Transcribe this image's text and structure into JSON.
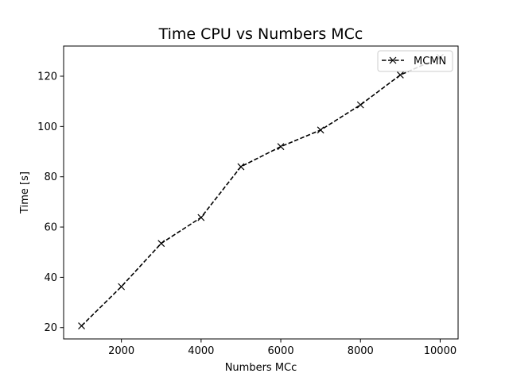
{
  "chart_data": {
    "type": "line",
    "title": "Time CPU vs Numbers MCc",
    "xlabel": "Numbers MCc",
    "ylabel": "Time [s]",
    "xlim": [
      550,
      10450
    ],
    "ylim": [
      15.5,
      132
    ],
    "xticks": [
      2000,
      4000,
      6000,
      8000,
      10000
    ],
    "yticks": [
      20,
      40,
      60,
      80,
      100,
      120
    ],
    "grid": false,
    "legend_position": "top-right",
    "series": [
      {
        "name": "MCMN",
        "color": "#000000",
        "line_style": "dashed",
        "marker": "x",
        "x": [
          1000,
          2000,
          3000,
          4000,
          5000,
          6000,
          7000,
          8000,
          9000,
          10000
        ],
        "y": [
          20.7,
          36.3,
          53.5,
          63.8,
          84.0,
          92.0,
          98.6,
          108.6,
          120.5,
          127.5
        ]
      }
    ]
  }
}
